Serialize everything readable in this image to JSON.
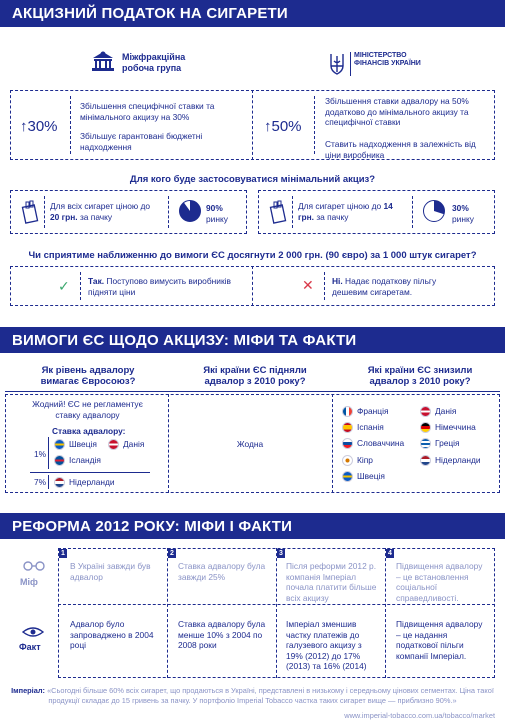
{
  "section1": {
    "title": "АКЦИЗНИЙ ПОДАТОК НА СИГАРЕТИ",
    "group_left": "Міжфракційна робоча група",
    "group_right": "МІНІСТЕРСТВО ФІНАНСІВ УКРАЇНИ",
    "left_pct": "30%",
    "left_line1": "Збільшення специфічної ставки та мінімального акцизу на 30%",
    "left_line2": "Збільшує гарантовані бюджетні надходження",
    "right_pct": "50%",
    "right_line1": "Збільшення ставки адвалору на 50% додатково до мінімального акцизу та специфічної ставки",
    "right_line2": "Ставить надходження в залежність від ціни виробника",
    "q1": "Для кого буде застосовуватися мінімальний акциз?",
    "card1_text_pre": "Для всіх сигарет ціною до ",
    "card1_text_bold": "20 грн.",
    "card1_text_post": " за пачку",
    "card1_pct": "90%",
    "card1_pct_label": "ринку",
    "card1_fill": 0.9,
    "card2_text_pre": "Для сигарет ціною до ",
    "card2_text_bold": "14 грн.",
    "card2_text_post": " за пачку",
    "card2_pct": "30%",
    "card2_pct_label": "ринку",
    "card2_fill": 0.3,
    "q2": "Чи сприятиме наближенню до вимоги ЄС досягнути 2 000 грн. (90 євро) за 1 000 штук сигарет?",
    "yes_bold": "Так.",
    "yes_text": " Поступово вимусить виробників підняти ціни",
    "no_bold": "Ні.",
    "no_text": " Надає податкову пільгу дешевим сигаретам."
  },
  "section2": {
    "title": "ВИМОГИ ЄС ЩОДО АКЦИЗУ: МІФИ ТА ФАКТИ",
    "col1_head": "Як рівень адвалору вимагає Євросоюз?",
    "col2_head": "Які країни ЄС підняли адвалор з 2010 року?",
    "col3_head": "Які країни ЄС знизили адвалор з 2010 року?",
    "col1_note": "Жодний! ЄС не регламентує ставку адвалору",
    "rate_label": "Ставка адвалору:",
    "rate1": "1%",
    "rate7": "7%",
    "countries_1pct": [
      "Швеція",
      "Данія",
      "Ісландія"
    ],
    "countries_7pct": [
      "Нідерланди"
    ],
    "col2_text": "Жодна",
    "lowered": [
      "Франція",
      "Данія",
      "Іспанія",
      "Німеччина",
      "Словаччина",
      "Греція",
      "Кіпр",
      "Нідерланди",
      "Швеція"
    ]
  },
  "section3": {
    "title": "РЕФОРМА 2012 РОКУ: МІФИ І ФАКТИ",
    "myth_label": "Міф",
    "fact_label": "Факт",
    "items": [
      {
        "n": "1",
        "myth": "В Україні завжди був адвалор",
        "fact": "Адвалор було запроваджено в 2004 році"
      },
      {
        "n": "2",
        "myth": "Ставка адвалору була завжди 25%",
        "fact": "Ставка адвалору була менше 10% з 2004 по 2008 роки"
      },
      {
        "n": "3",
        "myth": "Після реформи 2012 р. компанія Імперіал почала платити більше всіх акцизу",
        "fact": "Імперіал зменшив частку платежів до галузевого акцизу з 19% (2012) до 17% (2013) та 16% (2014)"
      },
      {
        "n": "4",
        "myth": "Підвищення адвалору – це встановлення соціальної справедливості.",
        "fact": "Підвищення адвалору – це надання податкової пільги компанії Імперіал."
      }
    ],
    "footer_bold": "Імперіал:",
    "footer_text": " «Сьогодні більше 60% всіх сигарет, що продаються в Україні, представлені в низькому і середньому цінових сегментах. Ціна такої продукції складає до 15 гривень за пачку. У портфоліо Imperial Tobacco частка таких сигарет вище — приблизно 90%.»",
    "footer_url": "www.imperial-tobacco.com.ua/tobacco/market"
  },
  "colors": {
    "brand": "#1d2b8f",
    "muted": "#8a93c6",
    "check": "#3aa76d",
    "cross": "#d93a4a"
  }
}
